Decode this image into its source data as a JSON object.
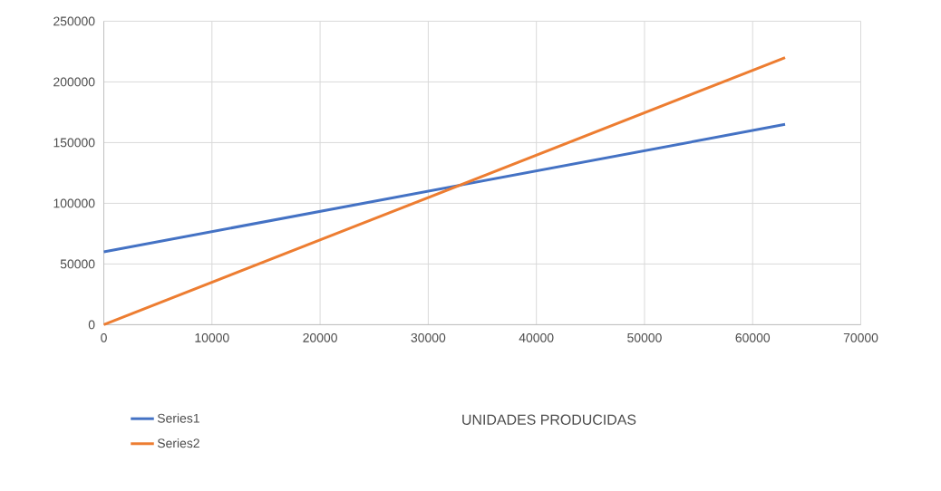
{
  "chart_data": {
    "type": "line",
    "annotations": [
      "UNIDADES PRODUCIDAS"
    ],
    "x": [
      0,
      63000
    ],
    "series": [
      {
        "name": "Series1",
        "color": "#4472c4",
        "values": [
          60000,
          165000
        ]
      },
      {
        "name": "Series2",
        "color": "#ed7d31",
        "values": [
          0,
          220000
        ]
      }
    ],
    "xlim": [
      0,
      70000
    ],
    "ylim": [
      0,
      250000
    ],
    "xticks": [
      0,
      10000,
      20000,
      30000,
      40000,
      50000,
      60000,
      70000
    ],
    "yticks": [
      0,
      50000,
      100000,
      150000,
      200000,
      250000
    ],
    "grid": true,
    "legend": "bottom left",
    "marker": "none",
    "line_style": "solid"
  }
}
